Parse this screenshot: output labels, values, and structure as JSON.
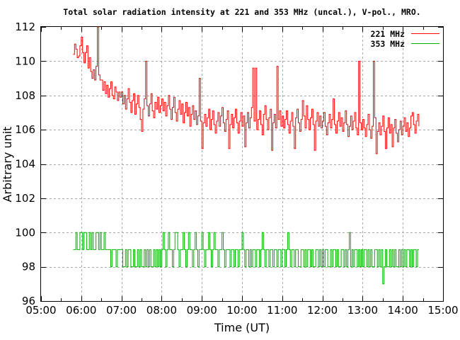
{
  "chart_data": {
    "type": "line",
    "title": "Total solar radiation intensity at 221 and 353 MHz (uncal.), V-pol., MRO.",
    "xlabel": "Time (UT)",
    "ylabel": "Arbitrary unit",
    "grid": {
      "show": true,
      "style": "dashed",
      "color": "#a8a8a8"
    },
    "x_axis": {
      "min_hours": 5,
      "max_hours": 15,
      "major_tick_step_hours": 1,
      "minor_tick_step_hours": 0.5,
      "tick_labels": [
        "05:00",
        "06:00",
        "07:00",
        "08:00",
        "09:00",
        "10:00",
        "11:00",
        "12:00",
        "13:00",
        "14:00",
        "15:00"
      ]
    },
    "y_axis": {
      "min": 96,
      "max": 112,
      "tick_step": 2,
      "tick_labels": [
        "96",
        "98",
        "100",
        "102",
        "104",
        "106",
        "108",
        "110",
        "112"
      ]
    },
    "legend": {
      "position": "top-right-inside",
      "entries": [
        {
          "label": "221 MHz",
          "color": "#ff0000"
        },
        {
          "label": "353 MHz",
          "color": "#00b400"
        }
      ]
    },
    "series": [
      {
        "name": "221 MHz",
        "color": "#ff0000",
        "start_hour_ut": 5.8,
        "step_minutes": 2,
        "values": [
          110.4,
          111.0,
          110.7,
          110.2,
          110.3,
          110.9,
          111.4,
          110.5,
          109.9,
          110.5,
          110.9,
          109.6,
          110.2,
          109.4,
          109.0,
          109.5,
          108.9,
          109.7,
          112.0,
          109.2,
          108.9,
          108.9,
          108.3,
          108.8,
          108.1,
          108.6,
          107.9,
          108.4,
          108.8,
          108.0,
          107.8,
          108.5,
          108.2,
          107.7,
          108.2,
          107.9,
          108.2,
          107.5,
          108.0,
          107.2,
          107.8,
          108.4,
          107.6,
          107.0,
          107.7,
          108.1,
          106.9,
          107.5,
          108.0,
          107.3,
          106.6,
          105.9,
          107.2,
          107.8,
          110.0,
          107.4,
          106.8,
          107.5,
          108.1,
          107.1,
          106.7,
          107.6,
          107.2,
          107.9,
          107.0,
          107.4,
          107.8,
          107.1,
          107.6,
          106.8,
          107.4,
          108.0,
          107.2,
          106.6,
          107.3,
          107.9,
          107.0,
          106.5,
          107.2,
          107.7,
          106.9,
          107.5,
          106.4,
          107.0,
          107.6,
          106.8,
          107.3,
          106.2,
          106.9,
          107.4,
          106.6,
          107.1,
          106.3,
          106.8,
          109.0,
          106.5,
          104.9,
          106.4,
          106.9,
          106.2,
          106.7,
          107.2,
          106.0,
          106.6,
          107.1,
          106.3,
          105.8,
          106.5,
          107.0,
          106.2,
          106.8,
          107.3,
          106.4,
          105.9,
          106.6,
          107.1,
          104.9,
          106.3,
          106.9,
          106.1,
          106.7,
          107.2,
          106.4,
          105.8,
          106.5,
          107.0,
          106.2,
          106.8,
          105.0,
          106.4,
          107.0,
          106.1,
          106.7,
          107.3,
          109.6,
          106.5,
          109.6,
          106.0,
          106.6,
          107.1,
          106.3,
          105.7,
          106.9,
          107.4,
          106.6,
          106.0,
          106.7,
          107.2,
          104.8,
          106.4,
          106.9,
          106.1,
          109.7,
          106.6,
          107.1,
          106.2,
          106.8,
          106.1,
          106.6,
          107.1,
          106.3,
          105.8,
          106.5,
          107.0,
          106.2,
          104.9,
          106.7,
          107.2,
          106.4,
          105.9,
          106.6,
          107.7,
          106.8,
          106.1,
          107.4,
          106.6,
          106.0,
          106.7,
          107.2,
          106.3,
          104.8,
          106.5,
          107.0,
          106.2,
          106.8,
          106.1,
          106.5,
          107.0,
          106.2,
          105.7,
          106.4,
          106.9,
          106.1,
          106.6,
          107.8,
          106.3,
          105.8,
          106.5,
          107.0,
          106.2,
          106.7,
          105.9,
          106.4,
          107.1,
          106.3,
          105.6,
          106.2,
          106.8,
          106.0,
          106.5,
          107.0,
          106.1,
          105.7,
          110.0,
          106.4,
          106.0,
          106.6,
          106.1,
          105.6,
          106.3,
          106.9,
          106.0,
          105.5,
          106.2,
          110.0,
          106.7,
          104.6,
          105.9,
          106.4,
          105.7,
          106.2,
          106.8,
          105.9,
          104.9,
          106.1,
          106.7,
          105.8,
          106.3,
          105.0,
          106.1,
          106.6,
          105.8,
          105.3,
          106.0,
          106.5,
          105.7,
          106.2,
          106.7,
          105.9,
          106.4,
          105.6,
          106.1,
          106.8,
          107.0,
          106.3,
          105.8,
          106.5,
          106.9,
          106.2
        ]
      },
      {
        "name": "353 MHz",
        "color": "#00b400",
        "start_hour_ut": 5.8,
        "step_minutes": 2,
        "values": [
          99,
          99,
          100,
          99,
          99,
          100,
          100,
          99,
          100,
          100,
          99,
          99,
          100,
          99,
          100,
          99,
          99,
          100,
          100,
          99,
          100,
          99,
          99,
          100,
          99,
          99,
          99,
          99,
          98,
          99,
          99,
          99,
          98,
          99,
          99,
          99,
          99,
          98,
          98,
          99,
          98,
          99,
          99,
          98,
          98,
          99,
          98,
          98,
          99,
          98,
          99,
          98,
          98,
          99,
          98,
          99,
          98,
          99,
          98,
          98,
          99,
          98,
          99,
          98,
          99,
          98,
          99,
          100,
          99,
          98,
          99,
          100,
          99,
          99,
          98,
          99,
          100,
          100,
          99,
          98,
          99,
          99,
          100,
          99,
          98,
          99,
          100,
          99,
          99,
          98,
          99,
          100,
          99,
          98,
          99,
          99,
          100,
          99,
          98,
          99,
          99,
          100,
          99,
          98,
          99,
          100,
          99,
          99,
          98,
          99,
          99,
          100,
          99,
          98,
          99,
          99,
          99,
          98,
          99,
          99,
          98,
          99,
          99,
          98,
          99,
          99,
          100,
          99,
          98,
          99,
          99,
          98,
          99,
          98,
          99,
          99,
          98,
          99,
          99,
          98,
          99,
          100,
          99,
          98,
          99,
          99,
          98,
          99,
          99,
          98,
          99,
          99,
          98,
          99,
          99,
          98,
          99,
          99,
          98,
          99,
          100,
          99,
          98,
          99,
          99,
          98,
          99,
          99,
          98,
          98,
          99,
          99,
          98,
          99,
          98,
          99,
          99,
          98,
          99,
          98,
          98,
          99,
          99,
          98,
          99,
          98,
          99,
          98,
          99,
          99,
          98,
          98,
          99,
          98,
          99,
          99,
          98,
          99,
          98,
          98,
          99,
          99,
          98,
          99,
          98,
          99,
          100,
          98,
          99,
          98,
          99,
          99,
          98,
          99,
          98,
          99,
          98,
          99,
          99,
          98,
          99,
          98,
          99,
          98,
          98,
          99,
          99,
          98,
          99,
          98,
          99,
          97,
          98,
          99,
          98,
          98,
          99,
          98,
          99,
          98,
          99,
          98,
          98,
          99,
          98,
          99,
          98,
          99,
          98,
          99,
          99,
          98,
          99,
          98,
          99,
          99,
          98,
          99,
          99
        ]
      }
    ]
  }
}
